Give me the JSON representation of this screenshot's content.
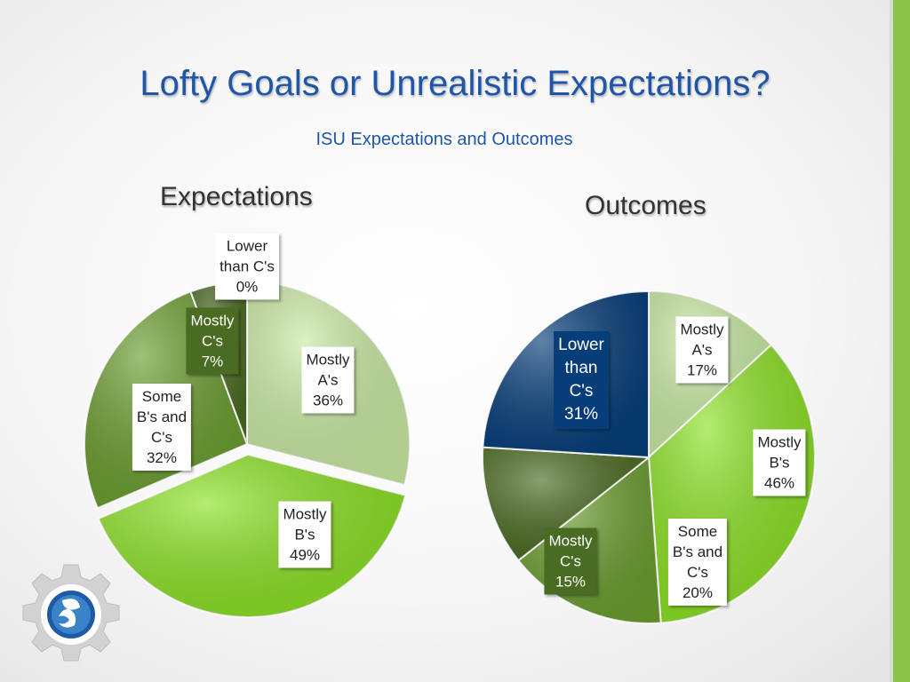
{
  "slide": {
    "title": "Lofty Goals or Unrealistic Expectations?",
    "subtitle": "ISU Expectations and Outcomes"
  },
  "colors": {
    "mostly_a": "#c9eaa3",
    "mostly_b": "#8ce225",
    "some_b_c": "#6c9e30",
    "mostly_c": "#4b6b22",
    "lower_c": "#073f7b",
    "accent_bar": "#8bc34a",
    "title_blue": "#1f56a8"
  },
  "chart_data": [
    {
      "type": "pie",
      "title": "Expectations",
      "slices": [
        {
          "label": "Mostly A's",
          "value": 36,
          "display": "Mostly\nA's\n36%"
        },
        {
          "label": "Mostly B's",
          "value": 49,
          "display": "Mostly\nB's\n49%"
        },
        {
          "label": "Some B's and C's",
          "value": 32,
          "display": "Some\nB's and\nC's\n32%"
        },
        {
          "label": "Mostly C's",
          "value": 7,
          "display": "Mostly\nC's\n7%"
        },
        {
          "label": "Lower than C's",
          "value": 0,
          "display": "Lower\nthan C's\n0%"
        }
      ]
    },
    {
      "type": "pie",
      "title": "Outcomes",
      "slices": [
        {
          "label": "Mostly A's",
          "value": 17,
          "display": "Mostly\nA's\n17%"
        },
        {
          "label": "Mostly B's",
          "value": 46,
          "display": "Mostly\nB's\n46%"
        },
        {
          "label": "Some B's and C's",
          "value": 20,
          "display": "Some\nB's and\nC's\n20%"
        },
        {
          "label": "Mostly C's",
          "value": 15,
          "display": "Mostly\nC's\n15%"
        },
        {
          "label": "Lower than C's",
          "value": 31,
          "display": "Lower\nthan\nC's\n31%"
        }
      ]
    }
  ],
  "logo": {
    "icon": "gear-logo-icon"
  }
}
